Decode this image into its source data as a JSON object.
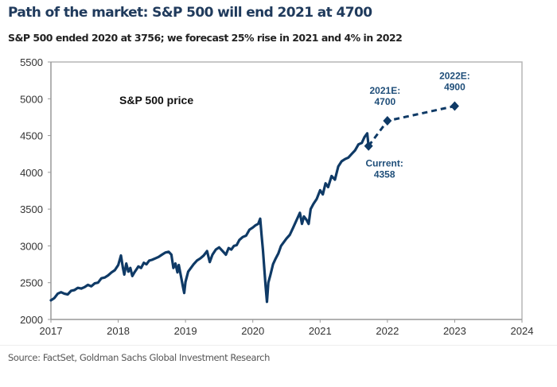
{
  "header": {
    "title": "Path of the market: S&P 500 will end 2021 at 4700",
    "subtitle": "S&P 500 ended 2020 at 3756; we forecast 25% rise in 2021 and 4% in 2022"
  },
  "footer": {
    "source": "Source: FactSet, Goldman Sachs Global Investment Research"
  },
  "chart_data": {
    "type": "line",
    "title": "Path of the market: S&P 500 will end 2021 at 4700",
    "subtitle": "S&P 500 ended 2020 at 3756; we forecast 25% rise in 2021 and 4% in 2022",
    "xlabel": "",
    "ylabel": "",
    "xlim": [
      2017,
      2024
    ],
    "ylim": [
      2000,
      5500
    ],
    "grid": false,
    "x_ticks": [
      "2017",
      "2018",
      "2019",
      "2020",
      "2021",
      "2022",
      "2023",
      "2024"
    ],
    "y_ticks": [
      "2000",
      "2500",
      "3000",
      "3500",
      "4000",
      "4500",
      "5000",
      "5500"
    ],
    "in_chart_label": "S&P 500 price",
    "colors": {
      "line": "#0f3a66",
      "annotation": "#1f4e79"
    },
    "series": [
      {
        "name": "S&P 500 price",
        "style": "solid",
        "x": [
          2017.0,
          2017.05,
          2017.1,
          2017.15,
          2017.2,
          2017.25,
          2017.3,
          2017.35,
          2017.4,
          2017.45,
          2017.5,
          2017.55,
          2017.6,
          2017.65,
          2017.7,
          2017.75,
          2017.8,
          2017.85,
          2017.9,
          2017.95,
          2018.0,
          2018.04,
          2018.07,
          2018.09,
          2018.12,
          2018.15,
          2018.18,
          2018.21,
          2018.24,
          2018.27,
          2018.3,
          2018.34,
          2018.38,
          2018.42,
          2018.46,
          2018.5,
          2018.55,
          2018.6,
          2018.65,
          2018.7,
          2018.75,
          2018.79,
          2018.82,
          2018.85,
          2018.88,
          2018.9,
          2018.93,
          2018.96,
          2018.98,
          2019.0,
          2019.04,
          2019.08,
          2019.12,
          2019.17,
          2019.22,
          2019.27,
          2019.32,
          2019.36,
          2019.4,
          2019.45,
          2019.5,
          2019.55,
          2019.6,
          2019.64,
          2019.68,
          2019.72,
          2019.76,
          2019.8,
          2019.85,
          2019.9,
          2019.95,
          2020.0,
          2020.04,
          2020.08,
          2020.11,
          2020.13,
          2020.15,
          2020.17,
          2020.19,
          2020.21,
          2020.23,
          2020.26,
          2020.3,
          2020.34,
          2020.38,
          2020.42,
          2020.46,
          2020.5,
          2020.55,
          2020.6,
          2020.65,
          2020.7,
          2020.73,
          2020.76,
          2020.8,
          2020.83,
          2020.86,
          2020.9,
          2020.95,
          2021.0,
          2021.04,
          2021.08,
          2021.12,
          2021.17,
          2021.22,
          2021.27,
          2021.32,
          2021.37,
          2021.42,
          2021.47,
          2021.52,
          2021.57,
          2021.62,
          2021.66,
          2021.7,
          2021.72
        ],
        "y": [
          2260,
          2290,
          2350,
          2370,
          2350,
          2340,
          2390,
          2400,
          2430,
          2420,
          2440,
          2470,
          2450,
          2490,
          2500,
          2560,
          2570,
          2600,
          2640,
          2670,
          2740,
          2870,
          2700,
          2610,
          2760,
          2650,
          2700,
          2590,
          2640,
          2680,
          2720,
          2700,
          2770,
          2750,
          2800,
          2810,
          2830,
          2850,
          2880,
          2910,
          2920,
          2880,
          2700,
          2760,
          2640,
          2740,
          2600,
          2450,
          2360,
          2510,
          2650,
          2700,
          2750,
          2800,
          2830,
          2870,
          2930,
          2780,
          2880,
          2950,
          2980,
          2930,
          2880,
          2970,
          2950,
          3000,
          3010,
          3080,
          3120,
          3140,
          3220,
          3250,
          3280,
          3300,
          3370,
          3150,
          2950,
          2700,
          2450,
          2240,
          2500,
          2600,
          2750,
          2830,
          2900,
          3000,
          3050,
          3100,
          3150,
          3250,
          3350,
          3450,
          3300,
          3400,
          3350,
          3300,
          3500,
          3570,
          3640,
          3756,
          3700,
          3850,
          3800,
          3950,
          3900,
          4080,
          4150,
          4180,
          4200,
          4250,
          4300,
          4380,
          4400,
          4480,
          4530,
          4358
        ]
      },
      {
        "name": "Forecast",
        "style": "dashed",
        "x": [
          2021.72,
          2022.0,
          2023.0
        ],
        "y": [
          4358,
          4700,
          4900
        ]
      }
    ],
    "annotations": [
      {
        "label": "Current:",
        "value": "4358",
        "x": 2021.72,
        "y": 4358
      },
      {
        "label": "2021E:",
        "value": "4700",
        "x": 2022.0,
        "y": 4700
      },
      {
        "label": "2022E:",
        "value": "4900",
        "x": 2023.0,
        "y": 4900
      }
    ]
  }
}
